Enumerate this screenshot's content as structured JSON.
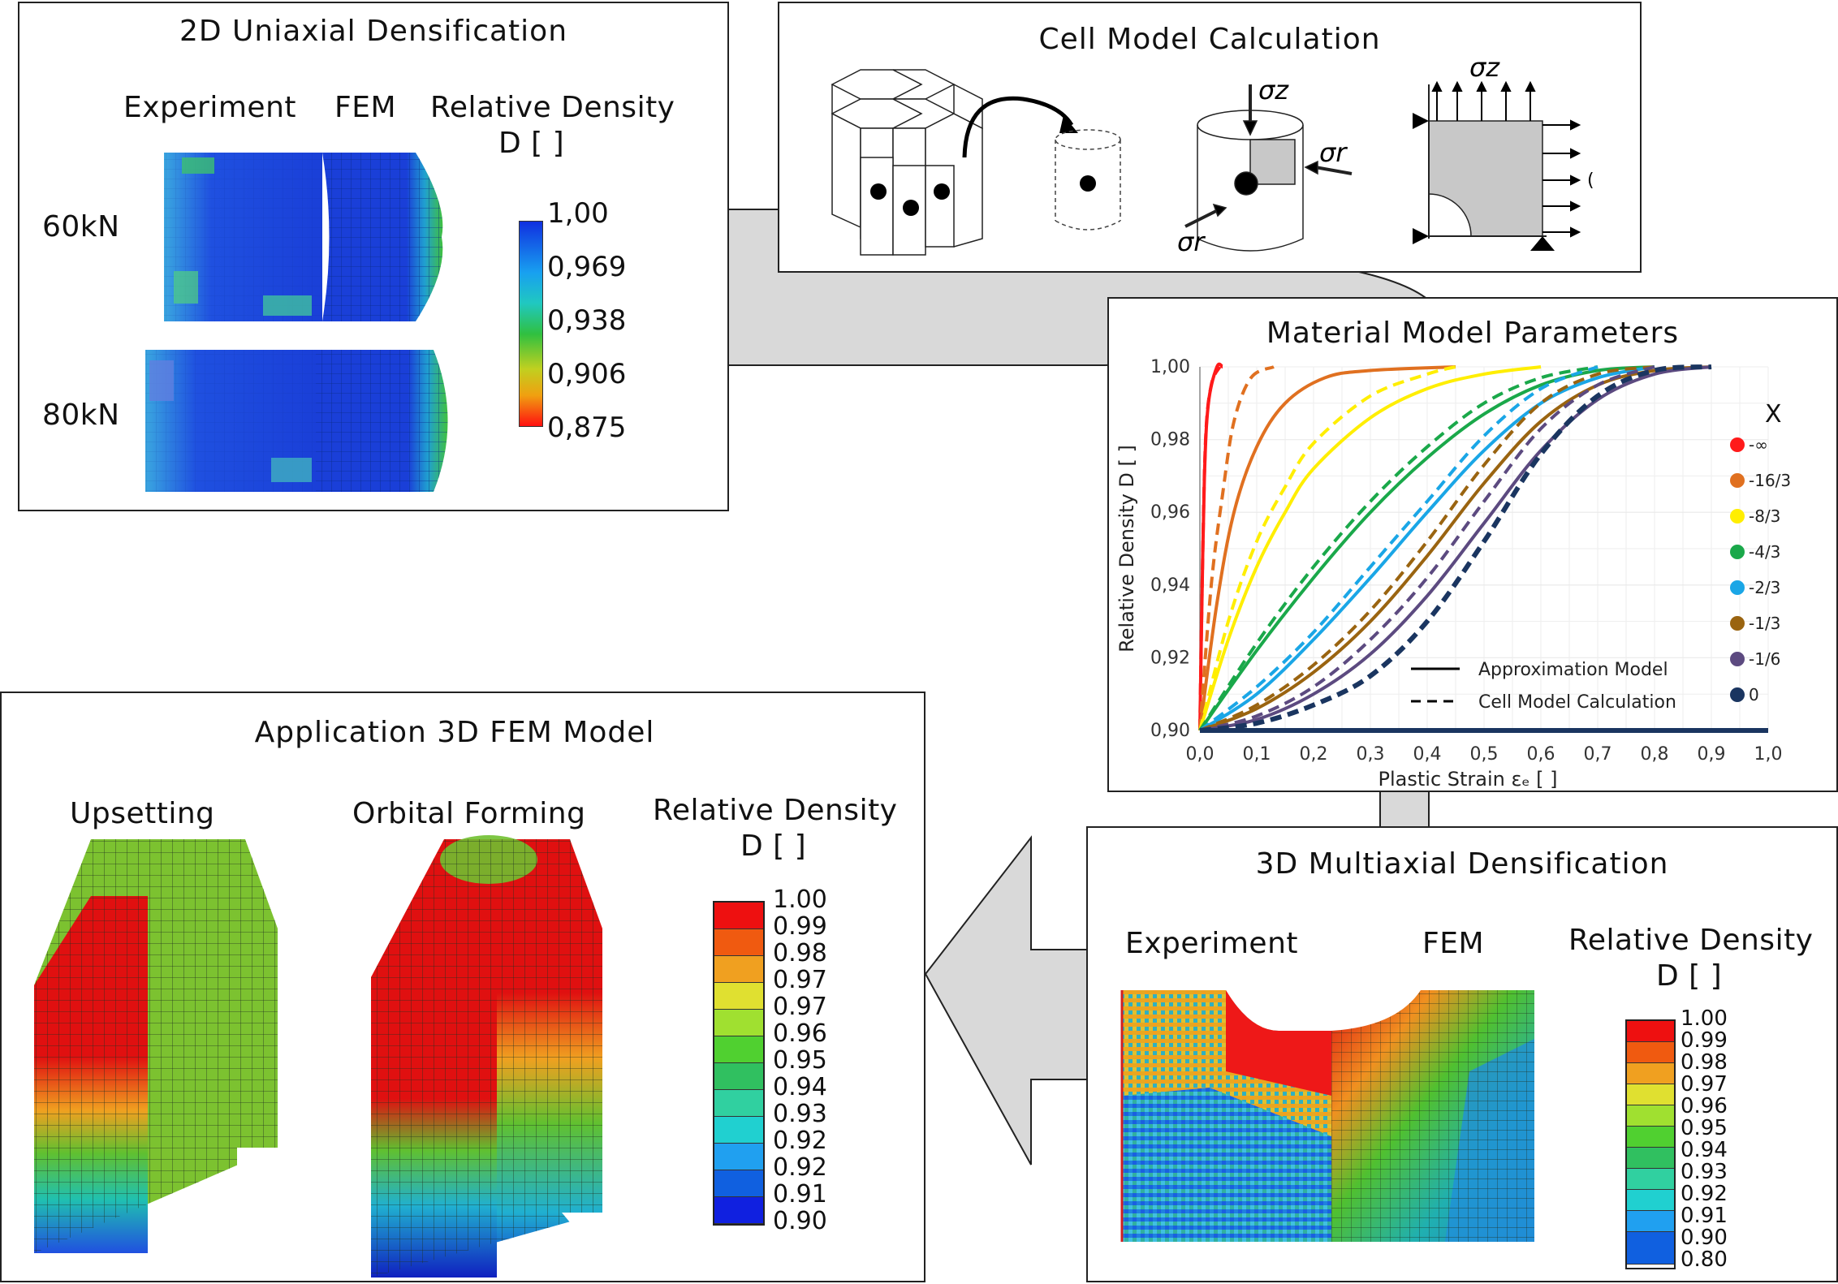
{
  "panels": {
    "uniaxial": {
      "title": "2D Uniaxial Densification",
      "col_experiment": "Experiment",
      "col_fem": "FEM",
      "density_label_1": "Relative Density",
      "density_label_2": "D [ ]",
      "row_60": "60kN",
      "row_80": "80kN",
      "colorbar": [
        "1,00",
        "0,969",
        "0,938",
        "0,906",
        "0,875"
      ]
    },
    "cell": {
      "title": "Cell Model Calculation",
      "sigma_z": "σz",
      "sigma_r": "σr"
    },
    "material": {
      "title": "Material Model Parameters"
    },
    "application": {
      "title": "Application 3D FEM Model",
      "col_upsetting": "Upsetting",
      "col_orbital": "Orbital Forming",
      "density_label_1": "Relative Density",
      "density_label_2": "D [ ]",
      "colorbar": [
        "1.00",
        "0.99",
        "0.98",
        "0.97",
        "0.97",
        "0.96",
        "0.95",
        "0.94",
        "0.93",
        "0.92",
        "0.92",
        "0.91",
        "0.90"
      ]
    },
    "multiaxial": {
      "title": "3D Multiaxial Densification",
      "col_experiment": "Experiment",
      "col_fem": "FEM",
      "density_label_1": "Relative Density",
      "density_label_2": "D [ ]",
      "colorbar": [
        "1.00",
        "0.99",
        "0.98",
        "0.97",
        "0.96",
        "0.95",
        "0.94",
        "0.93",
        "0.92",
        "0.91",
        "0.90",
        "0.80"
      ]
    }
  },
  "chart_data": {
    "type": "line",
    "xlabel": "Plastic Strain εₑ [ ]",
    "ylabel": "Relative Density D [ ]",
    "xlim": [
      0.0,
      1.0
    ],
    "ylim": [
      0.9,
      1.0
    ],
    "x_ticks": [
      "0,0",
      "0,1",
      "0,2",
      "0,3",
      "0,4",
      "0,5",
      "0,6",
      "0,7",
      "0,8",
      "0,9",
      "1,0"
    ],
    "y_ticks": [
      "0,90",
      "0,92",
      "0,94",
      "0,96",
      "0,98",
      "1,00"
    ],
    "grid": true,
    "legend_title": "X",
    "style_legend": {
      "solid": "Approximation Model",
      "dashed": "Cell Model Calculation"
    },
    "series": [
      {
        "name": "-∞",
        "color": "#ff1a1a",
        "approx": [
          [
            0.0,
            0.9
          ],
          [
            0.003,
            0.93
          ],
          [
            0.008,
            0.97
          ],
          [
            0.015,
            0.99
          ],
          [
            0.03,
            1.0
          ],
          [
            0.04,
            1.0
          ]
        ],
        "cell": [
          [
            0.0,
            0.9
          ],
          [
            0.004,
            0.94
          ],
          [
            0.01,
            0.98
          ],
          [
            0.02,
            0.995
          ],
          [
            0.035,
            1.0
          ]
        ]
      },
      {
        "name": "-16/3",
        "color": "#e07020",
        "approx": [
          [
            0.0,
            0.9
          ],
          [
            0.03,
            0.935
          ],
          [
            0.06,
            0.96
          ],
          [
            0.1,
            0.978
          ],
          [
            0.15,
            0.99
          ],
          [
            0.22,
            0.997
          ],
          [
            0.3,
            0.999
          ],
          [
            0.45,
            1.0
          ]
        ],
        "cell": [
          [
            0.0,
            0.9
          ],
          [
            0.02,
            0.94
          ],
          [
            0.04,
            0.965
          ],
          [
            0.06,
            0.985
          ],
          [
            0.09,
            0.997
          ],
          [
            0.13,
            1.0
          ]
        ]
      },
      {
        "name": "-8/3",
        "color": "#ffee00",
        "approx": [
          [
            0.0,
            0.9
          ],
          [
            0.05,
            0.925
          ],
          [
            0.1,
            0.945
          ],
          [
            0.15,
            0.96
          ],
          [
            0.2,
            0.972
          ],
          [
            0.3,
            0.986
          ],
          [
            0.4,
            0.994
          ],
          [
            0.5,
            0.998
          ],
          [
            0.6,
            1.0
          ]
        ],
        "cell": [
          [
            0.0,
            0.9
          ],
          [
            0.05,
            0.93
          ],
          [
            0.1,
            0.952
          ],
          [
            0.15,
            0.967
          ],
          [
            0.2,
            0.979
          ],
          [
            0.3,
            0.992
          ],
          [
            0.4,
            0.998
          ],
          [
            0.45,
            1.0
          ]
        ]
      },
      {
        "name": "-4/3",
        "color": "#1aa84a",
        "approx": [
          [
            0.0,
            0.9
          ],
          [
            0.1,
            0.922
          ],
          [
            0.2,
            0.942
          ],
          [
            0.3,
            0.96
          ],
          [
            0.4,
            0.975
          ],
          [
            0.5,
            0.987
          ],
          [
            0.6,
            0.995
          ],
          [
            0.7,
            0.999
          ],
          [
            0.8,
            1.0
          ]
        ],
        "cell": [
          [
            0.0,
            0.9
          ],
          [
            0.1,
            0.924
          ],
          [
            0.2,
            0.945
          ],
          [
            0.3,
            0.963
          ],
          [
            0.4,
            0.978
          ],
          [
            0.5,
            0.99
          ],
          [
            0.6,
            0.997
          ],
          [
            0.7,
            1.0
          ]
        ]
      },
      {
        "name": "-2/3",
        "color": "#1aa6e6",
        "approx": [
          [
            0.0,
            0.9
          ],
          [
            0.1,
            0.91
          ],
          [
            0.2,
            0.925
          ],
          [
            0.3,
            0.942
          ],
          [
            0.4,
            0.96
          ],
          [
            0.5,
            0.977
          ],
          [
            0.6,
            0.99
          ],
          [
            0.7,
            0.997
          ],
          [
            0.8,
            1.0
          ]
        ],
        "cell": [
          [
            0.0,
            0.9
          ],
          [
            0.1,
            0.912
          ],
          [
            0.2,
            0.927
          ],
          [
            0.3,
            0.945
          ],
          [
            0.4,
            0.963
          ],
          [
            0.5,
            0.981
          ],
          [
            0.6,
            0.994
          ],
          [
            0.7,
            1.0
          ]
        ]
      },
      {
        "name": "-1/3",
        "color": "#9a6410",
        "approx": [
          [
            0.0,
            0.9
          ],
          [
            0.1,
            0.906
          ],
          [
            0.2,
            0.916
          ],
          [
            0.3,
            0.93
          ],
          [
            0.4,
            0.948
          ],
          [
            0.5,
            0.968
          ],
          [
            0.6,
            0.985
          ],
          [
            0.7,
            0.995
          ],
          [
            0.8,
            0.999
          ],
          [
            0.9,
            1.0
          ]
        ],
        "cell": [
          [
            0.0,
            0.9
          ],
          [
            0.1,
            0.907
          ],
          [
            0.2,
            0.918
          ],
          [
            0.3,
            0.933
          ],
          [
            0.4,
            0.952
          ],
          [
            0.5,
            0.973
          ],
          [
            0.6,
            0.99
          ],
          [
            0.7,
            0.998
          ],
          [
            0.8,
            1.0
          ]
        ]
      },
      {
        "name": "-1/6",
        "color": "#5c4a80",
        "approx": [
          [
            0.0,
            0.9
          ],
          [
            0.1,
            0.903
          ],
          [
            0.2,
            0.91
          ],
          [
            0.3,
            0.921
          ],
          [
            0.4,
            0.937
          ],
          [
            0.5,
            0.957
          ],
          [
            0.6,
            0.977
          ],
          [
            0.7,
            0.991
          ],
          [
            0.8,
            0.998
          ],
          [
            0.9,
            1.0
          ]
        ],
        "cell": [
          [
            0.0,
            0.9
          ],
          [
            0.1,
            0.904
          ],
          [
            0.2,
            0.912
          ],
          [
            0.3,
            0.925
          ],
          [
            0.4,
            0.942
          ],
          [
            0.5,
            0.963
          ],
          [
            0.6,
            0.983
          ],
          [
            0.7,
            0.995
          ],
          [
            0.8,
            1.0
          ]
        ]
      },
      {
        "name": "0",
        "color": "#1a3560",
        "approx": [
          [
            0.0,
            0.9
          ],
          [
            1.0,
            0.9
          ]
        ],
        "cell": [
          [
            0.0,
            0.9
          ],
          [
            0.1,
            0.902
          ],
          [
            0.2,
            0.907
          ],
          [
            0.3,
            0.915
          ],
          [
            0.4,
            0.93
          ],
          [
            0.5,
            0.952
          ],
          [
            0.6,
            0.976
          ],
          [
            0.7,
            0.992
          ],
          [
            0.8,
            0.999
          ],
          [
            0.9,
            1.0
          ]
        ]
      }
    ]
  }
}
